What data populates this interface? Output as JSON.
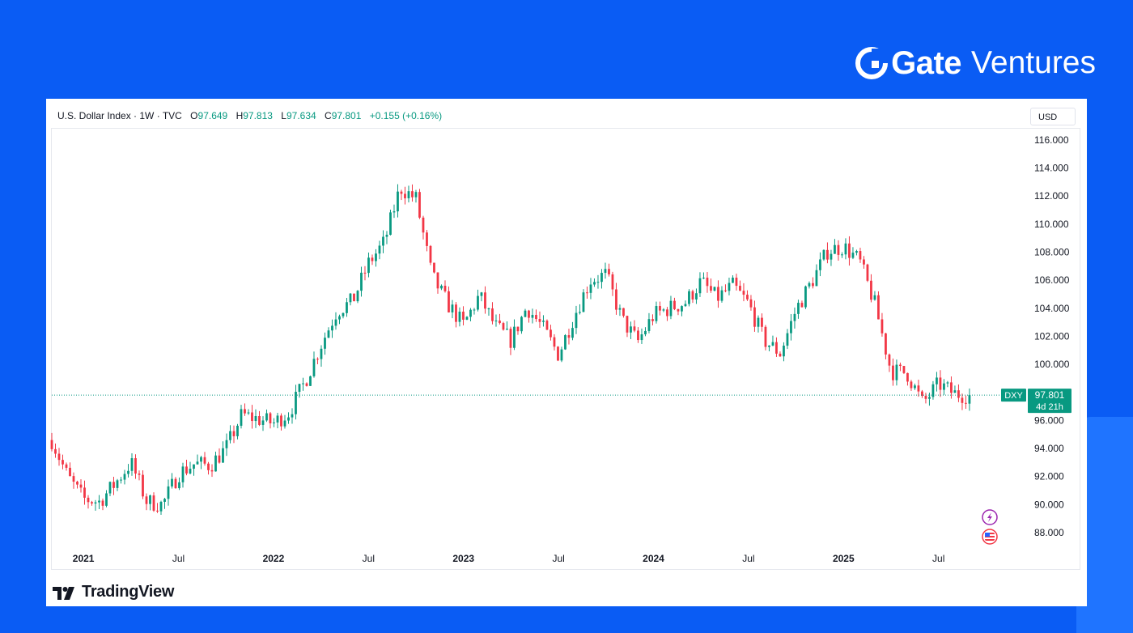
{
  "brand": {
    "name_bold": "Gate",
    "name_light": "Ventures"
  },
  "legend": {
    "symbol": "U.S. Dollar Index · 1W · TVC",
    "open_label": "O",
    "open": "97.649",
    "high_label": "H",
    "high": "97.813",
    "low_label": "L",
    "low": "97.634",
    "close_label": "C",
    "close": "97.801",
    "change": "+0.155 (+0.16%)"
  },
  "currency_label": "USD",
  "price_badge": {
    "ticker": "DXY",
    "price": "97.801",
    "countdown": "4d 21h"
  },
  "tradingview_label": "TradingView",
  "colors": {
    "up": "#089981",
    "down": "#f23645",
    "background": "#0a5cf4",
    "axis_text": "#131722"
  },
  "icons": [
    "flash-event-icon",
    "us-flag-event-icon"
  ],
  "chart_data": {
    "type": "candlestick",
    "title": "U.S. Dollar Index · 1W · TVC",
    "x_start": "2020-11",
    "x_end": "2025-09",
    "ylim": [
      86.9,
      116.8
    ],
    "y_ticks": [
      88,
      90,
      92,
      94,
      96,
      98,
      100,
      102,
      104,
      106,
      108,
      110,
      112,
      114,
      116
    ],
    "y_tick_labels": [
      "88.000",
      "90.000",
      "92.000",
      "94.000",
      "96.000",
      "",
      "100.000",
      "102.000",
      "104.000",
      "106.000",
      "108.000",
      "110.000",
      "112.000",
      "114.000",
      "116.000"
    ],
    "x_ticks": [
      {
        "date": "2021-01",
        "label": "2021",
        "bold": true
      },
      {
        "date": "2021-07",
        "label": "Jul",
        "bold": false
      },
      {
        "date": "2022-01",
        "label": "2022",
        "bold": true
      },
      {
        "date": "2022-07",
        "label": "Jul",
        "bold": false
      },
      {
        "date": "2023-01",
        "label": "2023",
        "bold": true
      },
      {
        "date": "2023-07",
        "label": "Jul",
        "bold": false
      },
      {
        "date": "2024-01",
        "label": "2024",
        "bold": true
      },
      {
        "date": "2024-07",
        "label": "Jul",
        "bold": false
      },
      {
        "date": "2025-01",
        "label": "2025",
        "bold": true
      },
      {
        "date": "2025-07",
        "label": "Jul",
        "bold": false
      }
    ],
    "last_price": 97.801,
    "grid": false,
    "series": [
      {
        "approximate_weekly_closes": true,
        "values": [
          {
            "date": "2020-11",
            "close": 94.6
          },
          {
            "date": "2020-12",
            "close": 92.0
          },
          {
            "date": "2021-01",
            "close": 90.4
          },
          {
            "date": "2021-02",
            "close": 90.2
          },
          {
            "date": "2021-03",
            "close": 91.5
          },
          {
            "date": "2021-04",
            "close": 93.0
          },
          {
            "date": "2021-05",
            "close": 90.2
          },
          {
            "date": "2021-06",
            "close": 90.0
          },
          {
            "date": "2021-07",
            "close": 92.2
          },
          {
            "date": "2021-08",
            "close": 92.9
          },
          {
            "date": "2021-09",
            "close": 92.8
          },
          {
            "date": "2021-10",
            "close": 94.0
          },
          {
            "date": "2021-11",
            "close": 96.4
          },
          {
            "date": "2021-12",
            "close": 96.1
          },
          {
            "date": "2022-01",
            "close": 95.8
          },
          {
            "date": "2022-02",
            "close": 96.6
          },
          {
            "date": "2022-03",
            "close": 98.8
          },
          {
            "date": "2022-04",
            "close": 101.4
          },
          {
            "date": "2022-05",
            "close": 103.8
          },
          {
            "date": "2022-06",
            "close": 104.5
          },
          {
            "date": "2022-07",
            "close": 107.2
          },
          {
            "date": "2022-08",
            "close": 108.7
          },
          {
            "date": "2022-09",
            "close": 112.6
          },
          {
            "date": "2022-10",
            "close": 111.8
          },
          {
            "date": "2022-11",
            "close": 106.3
          },
          {
            "date": "2022-12",
            "close": 104.3
          },
          {
            "date": "2023-01",
            "close": 102.8
          },
          {
            "date": "2023-02",
            "close": 104.9
          },
          {
            "date": "2023-03",
            "close": 102.7
          },
          {
            "date": "2023-04",
            "close": 101.7
          },
          {
            "date": "2023-05",
            "close": 104.1
          },
          {
            "date": "2023-06",
            "close": 102.6
          },
          {
            "date": "2023-07",
            "close": 100.7
          },
          {
            "date": "2023-08",
            "close": 103.5
          },
          {
            "date": "2023-09",
            "close": 106.0
          },
          {
            "date": "2023-10",
            "close": 106.4
          },
          {
            "date": "2023-11",
            "close": 103.2
          },
          {
            "date": "2023-12",
            "close": 101.6
          },
          {
            "date": "2024-01",
            "close": 103.5
          },
          {
            "date": "2024-02",
            "close": 104.0
          },
          {
            "date": "2024-03",
            "close": 104.4
          },
          {
            "date": "2024-04",
            "close": 105.9
          },
          {
            "date": "2024-05",
            "close": 104.7
          },
          {
            "date": "2024-06",
            "close": 105.6
          },
          {
            "date": "2024-07",
            "close": 104.3
          },
          {
            "date": "2024-08",
            "close": 101.7
          },
          {
            "date": "2024-09",
            "close": 100.8
          },
          {
            "date": "2024-10",
            "close": 103.9
          },
          {
            "date": "2024-11",
            "close": 105.9
          },
          {
            "date": "2024-12",
            "close": 108.1
          },
          {
            "date": "2025-01",
            "close": 108.4
          },
          {
            "date": "2025-02",
            "close": 107.4
          },
          {
            "date": "2025-03",
            "close": 104.2
          },
          {
            "date": "2025-04",
            "close": 99.5
          },
          {
            "date": "2025-05",
            "close": 99.4
          },
          {
            "date": "2025-06",
            "close": 97.2
          },
          {
            "date": "2025-07",
            "close": 98.6
          },
          {
            "date": "2025-08",
            "close": 97.9
          },
          {
            "date": "2025-09",
            "close": 97.8
          }
        ]
      }
    ]
  }
}
